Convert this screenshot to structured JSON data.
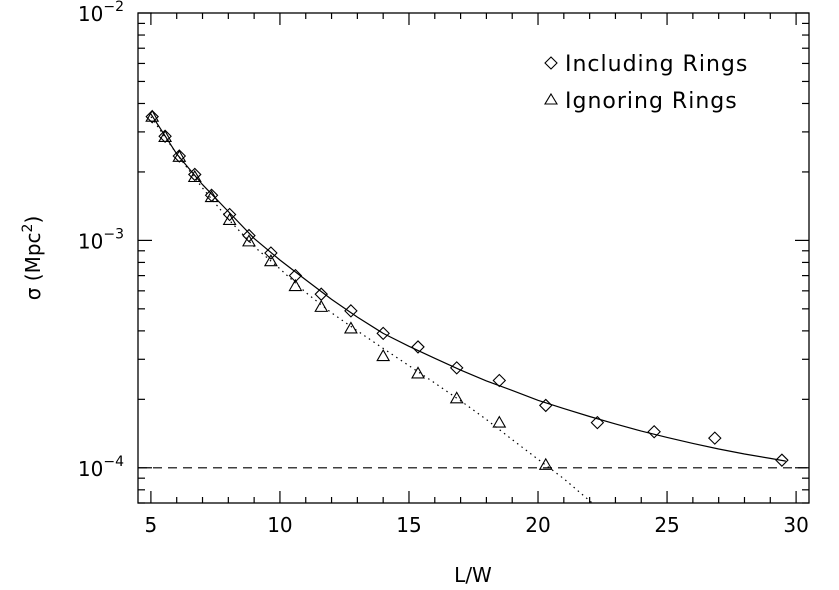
{
  "chart_data": {
    "type": "scatter",
    "xlabel": "L/W",
    "ylabel": "σ (Mpc",
    "ylabel_superscript": "2",
    "ylabel_close": ")",
    "xlim": [
      4.5,
      30.5
    ],
    "ylim": [
      7e-05,
      0.01
    ],
    "yscale": "log",
    "grid": false,
    "legend_position": "top-right",
    "x_ticks": [
      5,
      10,
      15,
      20,
      25,
      30
    ],
    "x_tick_labels": [
      "5",
      "10",
      "15",
      "20",
      "25",
      "30"
    ],
    "y_ticks": [
      {
        "value": 0.0001,
        "base": "10",
        "exp": "−4"
      },
      {
        "value": 0.001,
        "base": "10",
        "exp": "−3"
      },
      {
        "value": 0.01,
        "base": "10",
        "exp": "−2"
      }
    ],
    "series": [
      {
        "name": "Including Rings",
        "marker": "diamond",
        "x": [
          5.05,
          5.55,
          6.1,
          6.7,
          7.35,
          8.05,
          8.8,
          9.65,
          10.6,
          11.6,
          12.75,
          14.0,
          15.35,
          16.85,
          18.5,
          20.3,
          22.3,
          24.5,
          26.85,
          29.45
        ],
        "y": [
          0.0035,
          0.00287,
          0.00235,
          0.00195,
          0.00158,
          0.0013,
          0.00105,
          0.00088,
          0.0007,
          0.00058,
          0.00049,
          0.00039,
          0.00034,
          0.000275,
          0.000242,
          0.000188,
          0.000158,
          0.000144,
          0.000135,
          0.000108
        ]
      },
      {
        "name": "Ignoring Rings",
        "marker": "triangle",
        "x": [
          5.05,
          5.55,
          6.1,
          6.7,
          7.35,
          8.05,
          8.8,
          9.65,
          10.6,
          11.6,
          12.75,
          14.0,
          15.35,
          16.85,
          18.5,
          20.3
        ],
        "y": [
          0.0035,
          0.00285,
          0.00233,
          0.0019,
          0.00155,
          0.00123,
          0.00099,
          0.00081,
          0.00063,
          0.00051,
          0.00041,
          0.00031,
          0.00026,
          0.000202,
          0.000158,
          0.000103
        ]
      }
    ],
    "fits": [
      {
        "style": "solid",
        "x": [
          5.0,
          6.0,
          7.0,
          8.0,
          9.0,
          10.0,
          11.0,
          12.0,
          13.0,
          14.0,
          15.0,
          16.0,
          17.0,
          18.0,
          19.0,
          20.0,
          21.0,
          22.0,
          23.0,
          24.0,
          25.0,
          26.0,
          27.0,
          28.0,
          29.0,
          29.6
        ],
        "y": [
          0.0036,
          0.0024,
          0.00176,
          0.00134,
          0.00102,
          0.00082,
          0.00067,
          0.00055,
          0.00046,
          0.00039,
          0.000342,
          0.000303,
          0.000269,
          0.000241,
          0.000219,
          0.000198,
          0.000182,
          0.000168,
          0.000156,
          0.000145,
          0.000136,
          0.000128,
          0.000121,
          0.000115,
          0.00011,
          0.000107
        ]
      },
      {
        "style": "dotted",
        "x": [
          5.0,
          6.0,
          7.0,
          8.0,
          9.0,
          10.0,
          11.0,
          12.0,
          13.0,
          14.0,
          15.0,
          16.0,
          17.0,
          18.0,
          19.0,
          20.0,
          21.0,
          22.1
        ],
        "y": [
          0.0035,
          0.0024,
          0.0017,
          0.00124,
          0.00094,
          0.00075,
          0.00059,
          0.00048,
          0.0004,
          0.000335,
          0.000281,
          0.000236,
          0.000197,
          0.000163,
          0.000133,
          0.000109,
          8.95e-05,
          7e-05
        ]
      },
      {
        "style": "dashed",
        "x": [
          4.5,
          30.5
        ],
        "y": [
          0.0001,
          0.0001
        ]
      }
    ]
  }
}
